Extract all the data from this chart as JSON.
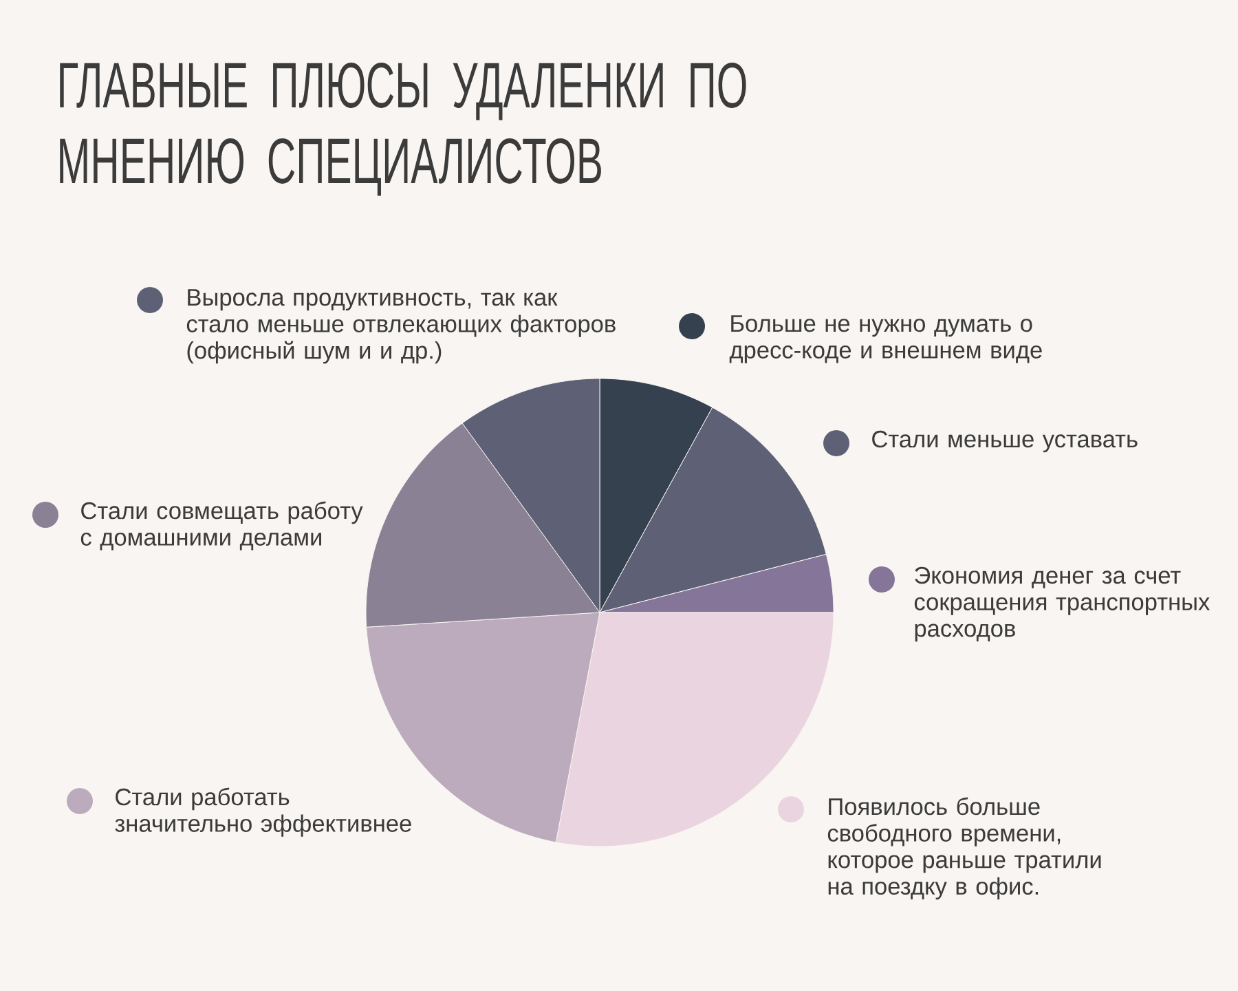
{
  "chart_data": {
    "type": "pie",
    "title": "ГЛАВНЫЕ ПЛЮСЫ УДАЛЕНКИ ПО МНЕНИЮ СПЕЦИАЛИСТОВ",
    "categories": [
      "Больше не нужно думать о дресс-коде и внешнем виде",
      "Стали меньше уставать",
      "Экономия денег за счет сокращения транспортных расходов",
      "Появилось больше свободного времени, которое раньше тратили на поездку в офис.",
      "Стали работать значительно эффективнее",
      "Стали совмещать работу с домашними делами",
      "Выросла продуктивность, так как стало меньше отвлекающих факторов (офисный шум и и др.)"
    ],
    "values": [
      8,
      13,
      4,
      28,
      21,
      16,
      10
    ],
    "colors": [
      "#35414f",
      "#5e6175",
      "#857598",
      "#ead4e0",
      "#bcaabd",
      "#8a8294",
      "#5e6175"
    ],
    "legend": "right"
  }
}
